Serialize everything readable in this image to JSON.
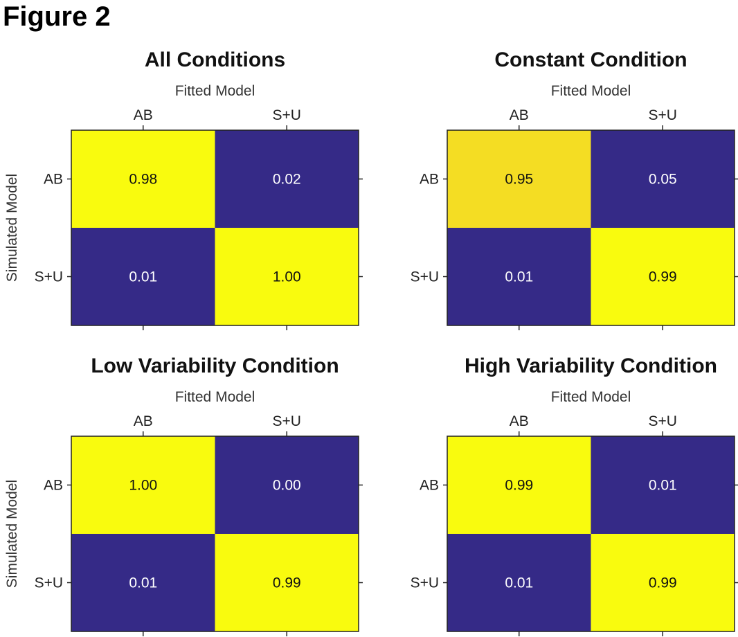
{
  "figure_title": "Figure 2",
  "colors": {
    "high": "#f9fb0e",
    "high_alt": "#f4dd23",
    "low": "#352a87"
  },
  "chart_data": [
    {
      "type": "heatmap",
      "title": "All Conditions",
      "xlabel": "Fitted Model",
      "ylabel": "Simulated Model",
      "x_categories": [
        "AB",
        "S+U"
      ],
      "y_categories": [
        "AB",
        "S+U"
      ],
      "values": [
        [
          0.98,
          0.02
        ],
        [
          0.01,
          1.0
        ]
      ],
      "labels": [
        [
          "0.98",
          "0.02"
        ],
        [
          "0.01",
          "1.00"
        ]
      ]
    },
    {
      "type": "heatmap",
      "title": "Constant Condition",
      "xlabel": "Fitted Model",
      "ylabel": "",
      "x_categories": [
        "AB",
        "S+U"
      ],
      "y_categories": [
        "AB",
        "S+U"
      ],
      "values": [
        [
          0.95,
          0.05
        ],
        [
          0.01,
          0.99
        ]
      ],
      "labels": [
        [
          "0.95",
          "0.05"
        ],
        [
          "0.01",
          "0.99"
        ]
      ]
    },
    {
      "type": "heatmap",
      "title": "Low Variability Condition",
      "xlabel": "Fitted Model",
      "ylabel": "Simulated Model",
      "x_categories": [
        "AB",
        "S+U"
      ],
      "y_categories": [
        "AB",
        "S+U"
      ],
      "values": [
        [
          1.0,
          0.0
        ],
        [
          0.01,
          0.99
        ]
      ],
      "labels": [
        [
          "1.00",
          "0.00"
        ],
        [
          "0.01",
          "0.99"
        ]
      ]
    },
    {
      "type": "heatmap",
      "title": "High Variability Condition",
      "xlabel": "Fitted Model",
      "ylabel": "",
      "x_categories": [
        "AB",
        "S+U"
      ],
      "y_categories": [
        "AB",
        "S+U"
      ],
      "values": [
        [
          0.99,
          0.01
        ],
        [
          0.01,
          0.99
        ]
      ],
      "labels": [
        [
          "0.99",
          "0.01"
        ],
        [
          "0.01",
          "0.99"
        ]
      ]
    }
  ]
}
